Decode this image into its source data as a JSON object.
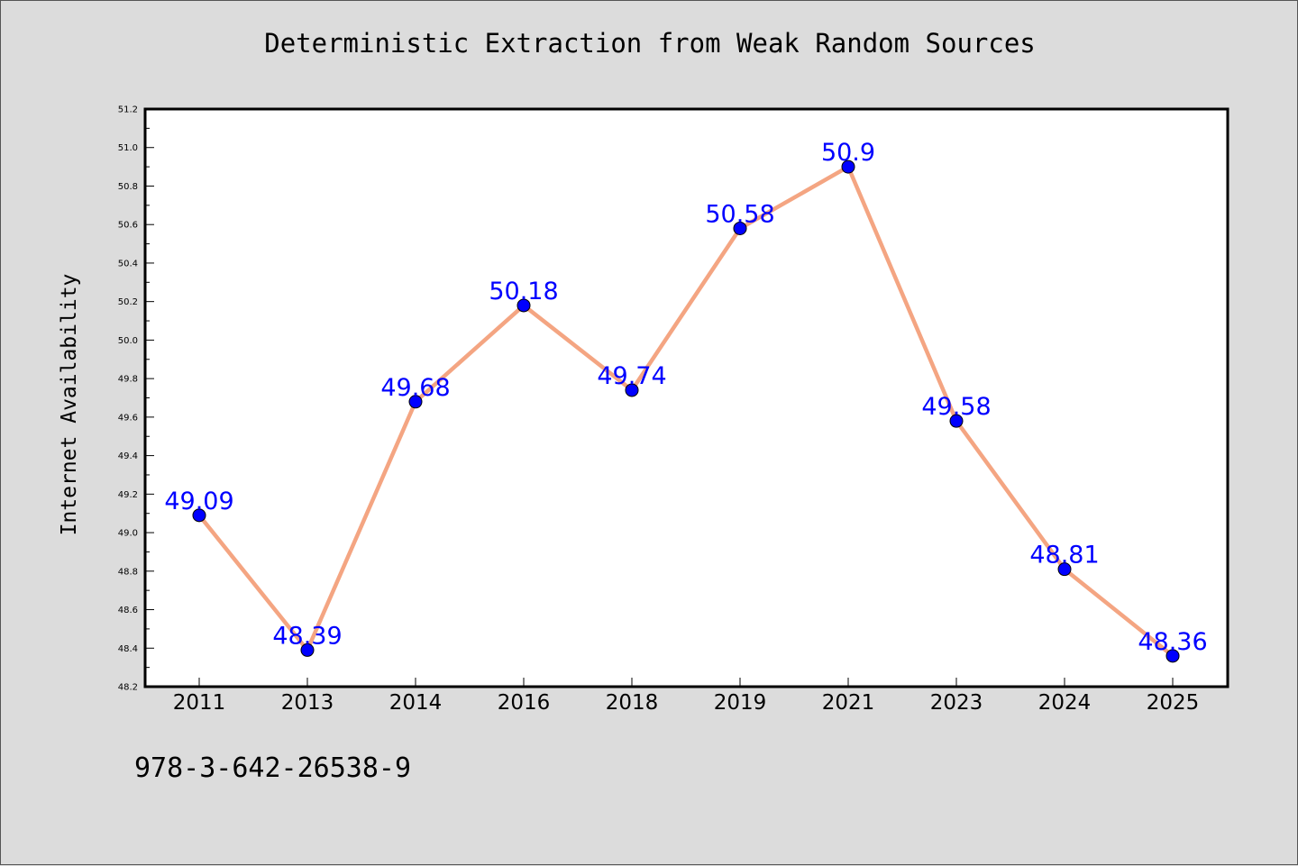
{
  "chart_data": {
    "type": "line",
    "title": "Deterministic Extraction from Weak Random Sources",
    "xlabel": "",
    "ylabel": "Internet Availability",
    "categories": [
      "2011",
      "2013",
      "2014",
      "2016",
      "2018",
      "2019",
      "2021",
      "2023",
      "2024",
      "2025"
    ],
    "values": [
      49.09,
      48.39,
      49.68,
      50.18,
      49.74,
      50.58,
      50.9,
      49.58,
      48.81,
      48.36
    ],
    "data_labels": [
      "49.09",
      "48.39",
      "49.68",
      "50.18",
      "49.74",
      "50.58",
      "50.9",
      "49.58",
      "48.81",
      "48.36"
    ],
    "ylim": [
      48.2,
      51.2
    ],
    "yticks": [
      "48.2",
      "48.4",
      "48.6",
      "48.8",
      "49.0",
      "49.2",
      "49.4",
      "49.6",
      "49.8",
      "50.0",
      "50.2",
      "50.4",
      "50.6",
      "50.8",
      "51.0",
      "51.2"
    ],
    "grid": false,
    "line_color": "#f4a582",
    "marker_color": "#0000ff",
    "label_color": "#0000ff"
  },
  "footer": {
    "text": "978-3-642-26538-9"
  },
  "colors": {
    "background": "#dcdcdc",
    "plot_background": "#ffffff"
  }
}
